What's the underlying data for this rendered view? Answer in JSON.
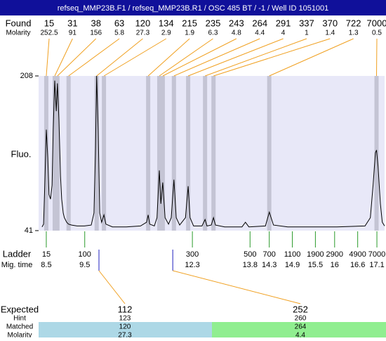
{
  "header": {
    "title": "refseq_MMP23B.F1 / refseq_MMP23B.R1 / OSC 485 BT / -1 / Well ID 1051001"
  },
  "chart_data": {
    "type": "line",
    "y_label": "Fluo.",
    "ylim": [
      41,
      208
    ],
    "yticks": [
      41,
      208
    ],
    "xlim": [
      8.3,
      17.3
    ],
    "color": "#000000",
    "x": [
      8.39,
      8.43,
      8.46,
      8.5,
      8.54,
      8.57,
      8.61,
      8.65,
      8.68,
      8.72,
      8.76,
      8.79,
      8.83,
      8.87,
      8.9,
      8.94,
      8.97,
      9.03,
      9.08,
      9.16,
      9.3,
      9.49,
      9.67,
      9.74,
      9.78,
      9.81,
      9.85,
      9.89,
      9.94,
      10.0,
      10.05,
      10.22,
      10.58,
      10.95,
      11.11,
      11.15,
      11.19,
      11.31,
      11.38,
      11.44,
      11.48,
      11.53,
      11.59,
      11.68,
      11.75,
      11.82,
      11.88,
      11.97,
      12.12,
      12.19,
      12.24,
      12.33,
      12.55,
      12.63,
      12.68,
      12.79,
      12.85,
      12.9,
      13.14,
      13.59,
      13.68,
      13.77,
      14.2,
      14.3,
      14.41,
      14.78,
      15.51,
      16.06,
      16.79,
      16.93,
      17.0,
      17.06,
      17.09,
      17.13,
      17.19,
      17.24,
      17.3
    ],
    "values": [
      45,
      48,
      90,
      150,
      120,
      80,
      75,
      90,
      150,
      203,
      170,
      200,
      160,
      100,
      75,
      60,
      55,
      50,
      48,
      47,
      46,
      46,
      47,
      60,
      130,
      208,
      150,
      60,
      50,
      58,
      48,
      45,
      45,
      46,
      50,
      58,
      48,
      46,
      55,
      106,
      70,
      93,
      55,
      48,
      55,
      96,
      55,
      47,
      55,
      89,
      55,
      46,
      46,
      53,
      46,
      47,
      55,
      47,
      45,
      45,
      50,
      45,
      46,
      61,
      47,
      45,
      45,
      45,
      46,
      55,
      90,
      125,
      128,
      110,
      70,
      50,
      46
    ],
    "found": {
      "label": "Found",
      "molarity_label": "Molarity",
      "sizes": [
        15,
        31,
        38,
        63,
        120,
        134,
        215,
        235,
        243,
        264,
        291,
        337,
        370,
        722,
        7000
      ],
      "molarity": [
        252.5,
        91,
        156,
        5.8,
        27.3,
        2.9,
        1.9,
        6.3,
        4.8,
        4.4,
        4,
        1,
        1.4,
        1.3,
        0.5
      ],
      "times": [
        8.5,
        8.72,
        8.79,
        9.08,
        9.81,
        10.0,
        11.15,
        11.44,
        11.53,
        11.82,
        12.19,
        12.63,
        12.85,
        14.3,
        17.09
      ]
    },
    "ladder": {
      "label": "Ladder",
      "time_label": "Mig. time",
      "sizes": [
        15,
        100,
        300,
        500,
        700,
        1100,
        1900,
        2900,
        4900,
        7000
      ],
      "times": [
        8.5,
        9.5,
        12.3,
        13.8,
        14.3,
        14.9,
        15.5,
        16,
        16.6,
        17.1
      ]
    },
    "expected": {
      "labels": [
        "Expected",
        "Hint",
        "Matched",
        "Molarity"
      ],
      "columns": [
        {
          "expected": 112,
          "hint": 123,
          "matched": 120,
          "molarity": 27.3,
          "time": 9.87
        },
        {
          "expected": 252,
          "hint": 260,
          "matched": 264,
          "molarity": 4.4,
          "time": 11.79
        }
      ]
    }
  }
}
